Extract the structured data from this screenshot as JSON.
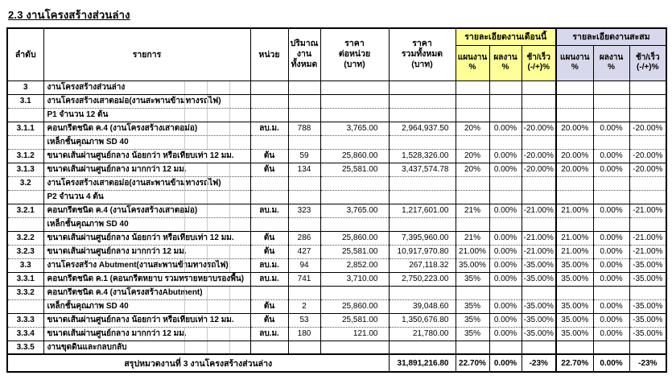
{
  "title": "2.3 งานโครงสร้างส่วนล่าง",
  "colors": {
    "month_header_bg": "#FFFF99",
    "cumulative_header_bg": "#D8D8EC",
    "grid_line": "#000000"
  },
  "table": {
    "headers": {
      "no": "ลำดับ",
      "item": "รายการ",
      "unit": "หน่วย",
      "quantity": "ปริมาณ\nงาน\nทั้งหมด",
      "unit_price": "ราคา\nต่อหน่วย\n(บาท)",
      "total_price": "ราคา\nรวมทั้งหมด\n(บาท)",
      "month_group": "รายละเอียดงานเดือนนี้",
      "cumulative_group": "รายละเอียดงานสะสม",
      "plan": "แผนงาน\n%",
      "actual": "ผลงาน\n%",
      "diff": "ช้า/เร็ว\n(-/+)%"
    },
    "rows": [
      {
        "no": "3",
        "desc": "งานโครงสร้างส่วนล่าง",
        "unit": "",
        "qty": "",
        "unit_price": "",
        "total": "",
        "m_plan": "",
        "m_actual": "",
        "m_diff": "",
        "c_plan": "",
        "c_actual": "",
        "c_diff": ""
      },
      {
        "no": "3.1",
        "desc": "งานโครงสร้างเสาตอม่อ(งานสะพานข้ามทางรถไฟ)",
        "unit": "",
        "qty": "",
        "unit_price": "",
        "total": "",
        "m_plan": "",
        "m_actual": "",
        "m_diff": "",
        "c_plan": "",
        "c_actual": "",
        "c_diff": ""
      },
      {
        "no": "",
        "desc": "P1 จำนวน 12 ต้น",
        "unit": "",
        "qty": "",
        "unit_price": "",
        "total": "",
        "m_plan": "",
        "m_actual": "",
        "m_diff": "",
        "c_plan": "",
        "c_actual": "",
        "c_diff": ""
      },
      {
        "no": "3.1.1",
        "desc": "คอนกรีตชนิด ค.4 (งานโครงสร้างเสาตอม่อ)",
        "unit": "ลบ.ม.",
        "qty": "788",
        "unit_price": "3,765.00",
        "total": "2,964,937.50",
        "m_plan": "20%",
        "m_actual": "0.00%",
        "m_diff": "-20.00%",
        "c_plan": "20.00%",
        "c_actual": "0.00%",
        "c_diff": "-20.00%"
      },
      {
        "no": "",
        "desc": "เหล็กชั้นคุณภาพ SD 40",
        "unit": "",
        "qty": "",
        "unit_price": "",
        "total": "",
        "m_plan": "",
        "m_actual": "",
        "m_diff": "",
        "c_plan": "",
        "c_actual": "",
        "c_diff": ""
      },
      {
        "no": "3.1.2",
        "desc": "ขนาดเส้นผ่านศูนย์กลาง น้อยกว่า หรือเทียบเท่า 12 มม.",
        "unit": "ต้น",
        "qty": "59",
        "unit_price": "25,860.00",
        "total": "1,528,326.00",
        "m_plan": "20%",
        "m_actual": "0.00%",
        "m_diff": "-20.00%",
        "c_plan": "20.00%",
        "c_actual": "0.00%",
        "c_diff": "-20.00%"
      },
      {
        "no": "3.1.3",
        "desc": "ขนาดเส้นผ่านศูนย์กลาง มากกว่า 12 มม.",
        "unit": "ต้น",
        "qty": "134",
        "unit_price": "25,581.00",
        "total": "3,437,574.78",
        "m_plan": "20%",
        "m_actual": "0.00%",
        "m_diff": "-20.00%",
        "c_plan": "20.00%",
        "c_actual": "0.00%",
        "c_diff": "-20.00%"
      },
      {
        "no": "3.2",
        "desc": "งานโครงสร้างเสาตอม่อ(งานสะพานข้ามทางรถไฟ)",
        "unit": "",
        "qty": "",
        "unit_price": "",
        "total": "",
        "m_plan": "",
        "m_actual": "",
        "m_diff": "",
        "c_plan": "",
        "c_actual": "",
        "c_diff": ""
      },
      {
        "no": "",
        "desc": "P2 จำนวน 4 ต้น",
        "unit": "",
        "qty": "",
        "unit_price": "",
        "total": "",
        "m_plan": "",
        "m_actual": "",
        "m_diff": "",
        "c_plan": "",
        "c_actual": "",
        "c_diff": ""
      },
      {
        "no": "3.2.1",
        "desc": "คอนกรีตชนิด ค.4 (งานโครงสร้างเสาตอม่อ)",
        "unit": "ลบ.ม.",
        "qty": "323",
        "unit_price": "3,765.00",
        "total": "1,217,601.00",
        "m_plan": "21%",
        "m_actual": "0.00%",
        "m_diff": "-21.00%",
        "c_plan": "21.00%",
        "c_actual": "0.00%",
        "c_diff": "-21.00%"
      },
      {
        "no": "",
        "desc": "เหล็กชั้นคุณภาพ SD 40",
        "unit": "",
        "qty": "",
        "unit_price": "",
        "total": "",
        "m_plan": "",
        "m_actual": "",
        "m_diff": "",
        "c_plan": "",
        "c_actual": "",
        "c_diff": ""
      },
      {
        "no": "3.2.2",
        "desc": "ขนาดเส้นผ่านศูนย์กลาง น้อยกว่า หรือเทียบเท่า 12 มม.",
        "unit": "ต้น",
        "qty": "286",
        "unit_price": "25,860.00",
        "total": "7,395,960.00",
        "m_plan": "21%",
        "m_actual": "0.00%",
        "m_diff": "-21.00%",
        "c_plan": "21.00%",
        "c_actual": "0.00%",
        "c_diff": "-21.00%"
      },
      {
        "no": "3.2.3",
        "desc": "ขนาดเส้นผ่านศูนย์กลาง มากกว่า 12 มม.",
        "unit": "ต้น",
        "qty": "427",
        "unit_price": "25,581.00",
        "total": "10,917,970.80",
        "m_plan": "21.00%",
        "m_actual": "0.00%",
        "m_diff": "-21.00%",
        "c_plan": "21.00%",
        "c_actual": "0.00%",
        "c_diff": "-21.00%"
      },
      {
        "no": "3.3",
        "desc": "งานโครงสร้าง Abutment(งานสะพานข้ามทางรถไฟ)",
        "unit": "ลบ.ม.",
        "qty": "94",
        "unit_price": "2,852.00",
        "total": "267,118.32",
        "m_plan": "35.00%",
        "m_actual": "0.00%",
        "m_diff": "-35.00%",
        "c_plan": "35.00%",
        "c_actual": "0.00%",
        "c_diff": "-35.00%"
      },
      {
        "no": "3.3.1",
        "desc": "คอนกรีตชนิด ค.1 (คอนกรีตหยาบ รวมทรายหยาบรองพื้น)",
        "unit": "ลบ.ม.",
        "qty": "741",
        "unit_price": "3,710.00",
        "total": "2,750,223.00",
        "m_plan": "35%",
        "m_actual": "0.00%",
        "m_diff": "-35.00%",
        "c_plan": "35.00%",
        "c_actual": "0.00%",
        "c_diff": "-35.00%"
      },
      {
        "no": "3.3.2",
        "desc": "คอนกรีตชนิด ค.4 (งานโครงสร้างAbutment)",
        "unit": "",
        "qty": "",
        "unit_price": "",
        "total": "",
        "m_plan": "",
        "m_actual": "",
        "m_diff": "",
        "c_plan": "",
        "c_actual": "",
        "c_diff": ""
      },
      {
        "no": "",
        "desc": "เหล็กชั้นคุณภาพ SD 40",
        "unit": "ต้น",
        "qty": "2",
        "unit_price": "25,860.00",
        "total": "39,048.60",
        "m_plan": "35%",
        "m_actual": "0.00%",
        "m_diff": "-35.00%",
        "c_plan": "35.00%",
        "c_actual": "0.00%",
        "c_diff": "-35.00%"
      },
      {
        "no": "3.3.3",
        "desc": "ขนาดเส้นผ่านศูนย์กลาง น้อยกว่า หรือเทียบเท่า 12 มม.",
        "unit": "ต้น",
        "qty": "53",
        "unit_price": "25,581.00",
        "total": "1,350,676.80",
        "m_plan": "35%",
        "m_actual": "0.00%",
        "m_diff": "-35.00%",
        "c_plan": "35.00%",
        "c_actual": "0.00%",
        "c_diff": "-35.00%"
      },
      {
        "no": "3.3.4",
        "desc": "ขนาดเส้นผ่านศูนย์กลาง มากกว่า 12 มม.",
        "unit": "ลบ.ม.",
        "qty": "180",
        "unit_price": "121.00",
        "total": "21,780.00",
        "m_plan": "35%",
        "m_actual": "0.00%",
        "m_diff": "-35.00%",
        "c_plan": "35.00%",
        "c_actual": "0.00%",
        "c_diff": "-35.00%"
      },
      {
        "no": "3.3.5",
        "desc": "งานขุดดินและกลบกลับ",
        "unit": "",
        "qty": "",
        "unit_price": "",
        "total": "",
        "m_plan": "",
        "m_actual": "",
        "m_diff": "",
        "c_plan": "",
        "c_actual": "",
        "c_diff": ""
      }
    ],
    "summary": {
      "label": "สรุปหมวดงานที่ 3 งานโครงสร้างส่วนล่าง",
      "total": "31,891,216.80",
      "m_plan": "22.70%",
      "m_actual": "0.00%",
      "m_diff": "-23%",
      "c_plan": "22.70%",
      "c_actual": "0.00%",
      "c_diff": "-23%"
    }
  }
}
